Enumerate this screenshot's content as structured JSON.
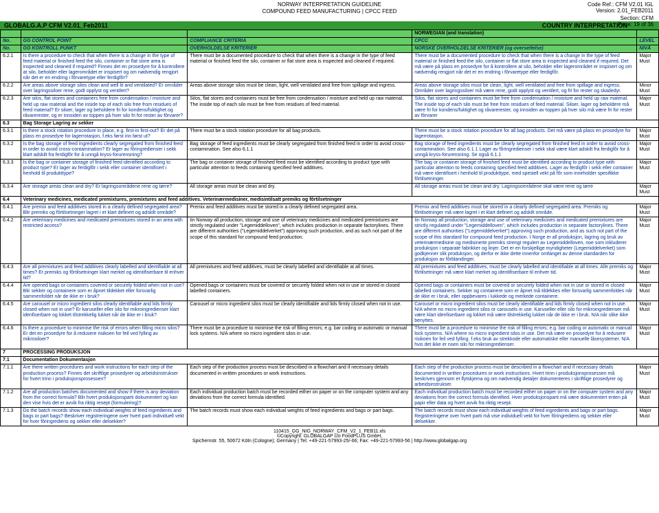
{
  "meta": {
    "title1": "NORWAY INTERPRETATION GUIDELINE",
    "title2": "COMPOUND FEED MANUFACTURING | CPCC FEED",
    "coderef": "Code Ref.: CFM V2.01 IGL",
    "version": "Version: 2.01_FEB2011",
    "section": "Section: CFM",
    "page": "Page: 19 of 36",
    "greenbar_left": "GLOBALG.A.P CFM V2.01_Feb2011",
    "greenbar_right": "COUNTRY INTERPRETATION",
    "nor_band": "NORWEGIAN (and translation)"
  },
  "heads": {
    "no": "No.",
    "gg": "GG CONTROL POINT",
    "gk": "GG KONTROLL PUNKT",
    "cc": "COMPLIANCE CRITERIA",
    "ok": "OVERHOLDELSE KRITERIER",
    "cp": "CPCC",
    "nk": "NORSKE OVERHOLDELSE KRITERIER (og oversettelse)",
    "lvl": "LEVEL",
    "niv": "NIVÅ"
  },
  "rows": [
    {
      "no": "6.2.1",
      "gg": "Is there a procedure to check that when there is a change in the type of feed material or finished feed the silo, container or flat store area is inspected and cleaned if required? Finnes det en prosedyre for å kontrollere at silo, beholder eller lagerområdet er inspisert og  om nødvendig rengjort når det er en endring i fôrvaretype eller ferdigfôr?",
      "cc": "There must be a documented procedure to check that when there is a change in the type of feed material or finished feed the silo, container or flat store area is inspected and cleaned if required.",
      "int": "There must be a documented procedure to check that when there is a change in the type of feed material or finished feed the silo, container or flat store area is inspected and cleaned if required. Det må være på plass en prosedyre for å kontrollere at silo, beholder eller lagerområdet er inspisert og om nødvendig rengjort når det er en endring i fôrvaretype eller ferdigfôr.",
      "lvl": "Major Must"
    },
    {
      "no": "6.2.2",
      "gg": "Are areas above storage silos clean and well lit and ventilated? Er områder over lagringssiloer rene, godt opplyst og ventilert?",
      "cc": "Areas above storage silos must be clean, light, well ventilated and free from spillage and ingress.",
      "int": "Areas above storage silos must be clean, light, well ventilated and free from spillage and ingress. Områder over lagringssiloer må være rene, godt opplyst og ventilert, og fri for rester og skadedyr.",
      "lvl": "Minor Must"
    },
    {
      "no": "6.2.3",
      "gg": "Are silos, flat stores and containers free from condensation / moisture and held up raw material and the inside top of each silo free from residues of feed material? Er siloer, lager og beholdere fri for kondens/fuktighet og råvarerester, og er innsiden av toppen på hver silo fri for rester av fôrvarer?",
      "cc": "Silos, flat stores and containers must be free from condensation / moisture and held up raw material. The inside top of each silo must be free from residues of feed material.",
      "int": "Silos, flat stores and containers must be free from condensation / moisture and held up raw material. The inside top of each silo must be free from residues of feed material. Siloer, lager og beholdere må være fri for kondens/fuktighet og råvarerester, og  innsiden av toppen på hver silo må være fri for rester av fôrvarer",
      "lvl": "Major Must"
    },
    {
      "no": "6.3",
      "section": true,
      "gg": "Bag Storage Lagring av sekker",
      "cc": "",
      "int": "",
      "lvl": ""
    },
    {
      "no": "6.3.1",
      "gg": "Is there a stock rotation procedure in place, e.g. first-in first-out? Er det  på plass en prosedyre for lagerrotasjon, f.eks først inn først ut?",
      "cc": "There must be a stock rotation procedure for all bag products.",
      "int": "There must be a stock rotation procedure for all bag products. Det må være på plass en prosedyre for lagerrotasjon.",
      "lvl": "Major Must"
    },
    {
      "no": "6.3.2",
      "gg": "Is the bag storage of feed ingredients clearly segregated from finished feed in order to avoid cross-contamination? Er lager av fôringredienser i sekk klart adskilt fra ferdigfôr for å unngå kryss-forurensning?",
      "cc": "Bag storage of feed ingredients must be clearly segregated from finished feed in order to avoid cross-contamination. See also 6.1.1",
      "int": "Bag storage of feed ingredients must be clearly segregated from finished feed in order to avoid cross-contamination. See also 6.1.1 Lager av fôringredienser i sekk skal være klart adskilt fra ferdigfôr for å unngå kryss-forurensning. Se også 6.1.1",
      "lvl": "Major Must"
    },
    {
      "no": "6.3.3",
      "gg": "Is the bag or container storage of finished feed identified according to product type? Er lager av ferdigfôr i sekk eller container identifisert i henhold til produkttype?",
      "cc": "The bag or container storage of finished feed must be identified according to product type with particular attention to feeds containing specified feed additives.",
      "int": "The bag or container storage of finished feed must be identified according to product type with particular attention to feeds containing specified feed additives. Lager av ferdigfôr i sekk eller container må være identifisert i henhold til produkttype, med spesiell vekt på fôr som inneholder spesifikke fôrtilsetninger.",
      "lvl": "Major Must"
    },
    {
      "no": "6.3.4",
      "gg": "Are storage areas clean and dry? Er lagringsområdene rene og tørre?",
      "cc": "All storage areas must be clean and dry.",
      "int": "All storage areas must be clean and dry. Lagringsområdene skal være rene og tørre",
      "lvl": "Major Must"
    },
    {
      "no": "6.4",
      "section": true,
      "gg": "Veterinary medicines, medicated premixtures, premixtures and feed additives. Veterinærmedisiner, medisintilsatt premiks og fôrtilsetninger",
      "cc": "",
      "int": "",
      "lvl": ""
    },
    {
      "no": "6.4.1",
      "gg": "Are premix and feed additives stored in a clearly defined segregated area? Blir premiks og fôrtilsetninger lagret i et klart definert og adskilt område?",
      "cc": "Premix and feed additives must be stored in a clearly defined segregated area.",
      "int": "Premix and feed additives must be stored in a clearly defined segregated area. Premiks og fôrtilsetninger må være lagret i et klart definert og adskilt område.",
      "lvl": "Major Must"
    },
    {
      "no": "6.4.2",
      "gg": "Are veterinary medicines and medicated premixtures stored in an area with restricted access?",
      "cc": "Iin Norway all production, storage and use of veterinary medicines and medicated premixtures are strictly regulated under \"Legemiddelloven\", which includes production in separate factorylines. There are different authorities (\"Legemiddelverket\") approving such production, and as such not part of the scope of this standard for compound feed production.",
      "int": "Iin Norway all production, storage and use of veterinary medicines and medicated premixtures are strictly regulated under \"Legemiddelloven\", which includes production in separate factorylines. There are different authorities (\"Legemiddelverket\") approving such production, and as such not part of the scope of this standard for compound feed production. I Norge er all produksjon, lagring og bruk av veterinærmedisine og medisinerte premiks strengt regulert av Legemiddelloven, noe som inkluderer produksjon i separate fabrikker og linjer. Det er en forskjellige myndigheter (Legemiddelverket) som godkjenner slik produksjon, og derfor er ikke dette innenfor omfanget av denne standarden for produksjon av fôrblandinger.",
      "lvl": "Major Must"
    },
    {
      "no": "6.4.3",
      "gg": "Are all premixtures and feed additives clearly labelled and identifiable at all times? Er premiks og fôrtilsetninger klart merket og identifiserbare til enhver tid?",
      "cc": "All premixtures and feed additives, must be clearly labelled and identifiable at all times.",
      "int": "All premixtures and feed additives, must be clearly labelled and identifiable at all times. Alle premiks og fôrtilsetninger må være klart merket og identifiserbare til enhver tid.",
      "lvl": "Major Must"
    },
    {
      "no": "6.4.4",
      "gg": "Are opened bags or containers covered or securely folded when not in use? Blir sekker og containere som er åpnet tildekket eller forsvarlig sammenfoldet når de ikke er i bruk?",
      "cc": "Opened bags or containers must be covered or securely folded when not in use or stored in closed labelled containers.",
      "int": "Opened bags or containers must be covered or securely folded when not in use or stored in closed labelled containers. Sekker og containere som er åpnet må tildekkes eller forsvarlig sammenfoldes når de ikke er i bruk, eller oppbevares i lukkede og merkede containere.",
      "lvl": "Major Must"
    },
    {
      "no": "6.4.5",
      "gg": "Are carousel or micro ingredient silos clearly identifiable and lids firmly closed when not in use? Er karuseller eller silo for mikroingredienser klart idenfiserbare og lokket tilstrekkelig lukket når de ikke  er i bruk?",
      "cc": "Carousel or micro ingredient silos must be clearly identifiable and lids firmly closed when not in use.",
      "int": "Carousel or micro ingredient silos must be clearly identifiable and lids firmly closed when not in use.  N/A where no micro ingredient silos or carousels in use. Karuseller eller silo for mikroingredienser må være klart idenfiserbare og lokket må være tilstrekkelig lukket når de ikke er i bruk. N/A når slike ikke benyttes.",
      "lvl": "Major Must"
    },
    {
      "no": "6.4.6",
      "gg": "Is there a procedure to minimise the risk of errors when filling micro silos? Er det en prosedyre for å redusere risikoen for feil ved fylling av mikrosiloer?",
      "cc": "There must be a procedure to minimise the risk of filling errors; e.g. bar coding or automatic or manual lock systems. N/A where no micro ingredient silos  in use.",
      "int": "There must be a procedure to minimise the risk of filling errors; e.g. bar coding or automatic or manual lock systems.  N/A where no micro ingredient silos  in use. Det må være en prosedyre for å redusere risikoen for feil ved fylling. f.eks bruk av strekkode eller automatiske eller manuelle låsesystemer. N/A hvis det ikke er noen silo for mikroingredienser.",
      "lvl": "Major Must"
    },
    {
      "no": "7",
      "section": true,
      "gg": "PROCESSING PRODUKSJON",
      "cc": "",
      "int": "",
      "lvl": ""
    },
    {
      "no": "7.1",
      "section": true,
      "gg": "Documentation Dokumentasjon",
      "cc": "",
      "int": "",
      "lvl": ""
    },
    {
      "no": "7.1.1",
      "gg": "Are there written procedures and work instructions for each step of the production process? Finnes det skriftlige prosedyrer og arbeidsinstrukser for hvert trinn i produksjonsprosessen?",
      "cc": "Each step of the production process must be described in a flowchart and if necessary details documented in written procedures or work instructions.",
      "int": "Each step of the production process must be described in a flowchart and if necessary details documented in written procedures or work instructions. Hvert trinn i produksjonsprosessen må beskrives gjennom et flytskjema og om nødvendig detaljer dokumenteres i skriftlige prosedyrer og arbeidsinstrukser.",
      "lvl": "Major Must"
    },
    {
      "no": "7.1.2",
      "gg": "Are all production batches documented and show if there is any deviation from the correct formula? Blir hvert produksjonsparti dokumentert og kan den vise hvis det er avvik fra riktig resept (formulering)?",
      "cc": "Each individual production batch must be recorded either on paper or on the computer system and any deviations from the correct formula identified.",
      "int": "Each individual production batch must be recorded either on paper or on the computer system and any deviations from the correct formula identified. Hver produksjonsparti må være dokumentert enten på papir eller data og hvert avvik fra riktig resept.",
      "lvl": "Major Must"
    },
    {
      "no": "7.1.3",
      "gg": "Do the batch records show each individual weights of feed ingredients and bags or part bags? Beskriver registreringene over hvert parti individuell vekt for hver fôringrediens og sekker eller delsekker?",
      "cc": "The batch records must show each individual weights of feed ingredients and bags or part bags.",
      "int": "The batch records must show each individual weights of feed ingredients and bags or part bags. Registreringene over hvert parti må vise individuell vekt for hver fôringrediens og sekker eller delsekker.",
      "lvl": "Major Must"
    }
  ],
  "foot": {
    "file": "110415_GG_NIG_NORWAY_CFM_V2_1_FEB11.xls",
    "copy": "©Copyright: GLOBALGAP c/o FoodPLUS GmbH,",
    "addr": "Spichernstr. 55, 50672 Köln (Cologne); Germany | Tel: +49-221-57993-25/-66; Fax: +49-221-57993-56 | http://www.globalgap.org"
  }
}
